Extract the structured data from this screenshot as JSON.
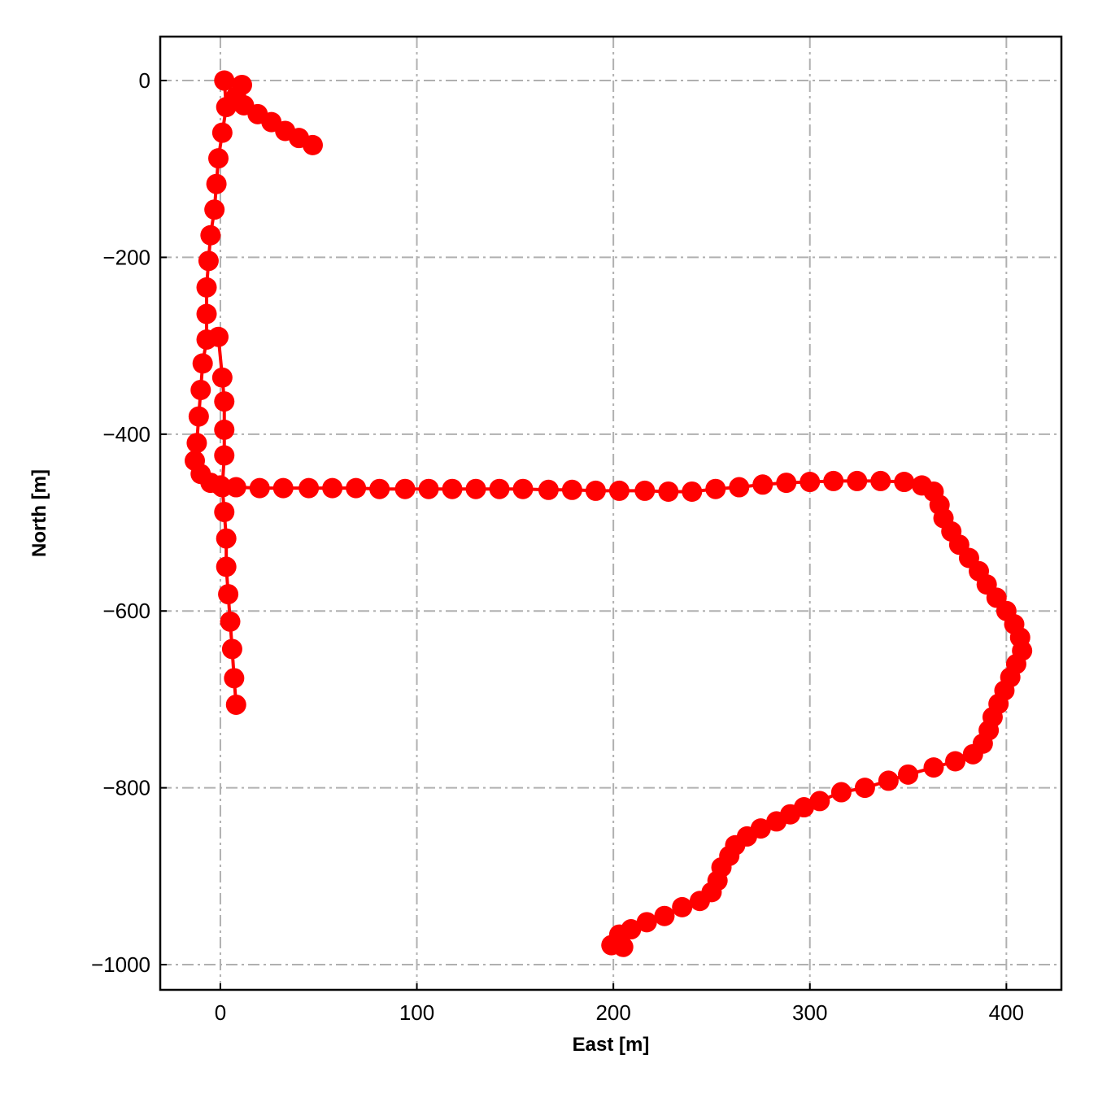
{
  "chart_data": {
    "type": "line",
    "xlabel": "East [m]",
    "ylabel": "North [m]",
    "x": [
      47,
      40,
      33,
      26,
      19,
      12,
      8,
      11,
      2,
      3,
      1,
      -1,
      -2,
      -3,
      -5,
      -6,
      -7,
      -7,
      -7,
      -9,
      -10,
      -11,
      -12,
      -13,
      -10,
      -5,
      0,
      8,
      20,
      32,
      45,
      57,
      69,
      81,
      94,
      106,
      118,
      130,
      142,
      154,
      167,
      179,
      191,
      203,
      216,
      228,
      240,
      252,
      264,
      276,
      288,
      300,
      312,
      324,
      336,
      348,
      357,
      363,
      366,
      368,
      372,
      376,
      381,
      386,
      390,
      395,
      400,
      404,
      407,
      408,
      405,
      402,
      399,
      396,
      393,
      391,
      388,
      383,
      374,
      363,
      350,
      340,
      328,
      316,
      305,
      297,
      290,
      283,
      275,
      268,
      262,
      259,
      255,
      253,
      250,
      244,
      235,
      226,
      217,
      209,
      203,
      199,
      205,
      null,
      8,
      7,
      6,
      5,
      4,
      3,
      3,
      2,
      1,
      2,
      2,
      2,
      1,
      -1
    ],
    "values": [
      -73,
      -65,
      -57,
      -47,
      -38,
      -28,
      -18,
      -5,
      0,
      -30,
      -59,
      -88,
      -117,
      -146,
      -175,
      -204,
      -234,
      -264,
      -293,
      -320,
      -350,
      -380,
      -410,
      -430,
      -445,
      -455,
      -458,
      -460,
      -461,
      -461,
      -461,
      -461,
      -461,
      -462,
      -462,
      -462,
      -462,
      -462,
      -462,
      -462,
      -463,
      -463,
      -464,
      -464,
      -464,
      -465,
      -465,
      -462,
      -460,
      -457,
      -455,
      -454,
      -453,
      -453,
      -453,
      -454,
      -458,
      -465,
      -480,
      -495,
      -510,
      -525,
      -540,
      -555,
      -570,
      -585,
      -600,
      -615,
      -630,
      -645,
      -660,
      -675,
      -690,
      -705,
      -720,
      -735,
      -750,
      -762,
      -770,
      -777,
      -785,
      -792,
      -800,
      -805,
      -815,
      -822,
      -830,
      -838,
      -846,
      -855,
      -865,
      -877,
      -890,
      -905,
      -918,
      -928,
      -935,
      -945,
      -952,
      -960,
      -966,
      -978,
      -980,
      null,
      -706,
      -676,
      -643,
      -612,
      -581,
      -550,
      -518,
      -488,
      -460,
      -424,
      -395,
      -363,
      -336,
      -290
    ],
    "color": "#ff0000",
    "xlim": [
      -30.6,
      428
    ],
    "ylim": [
      -1028.5,
      49.7
    ],
    "xticks": [
      0,
      100,
      200,
      300,
      400
    ],
    "yticks": [
      0,
      {
        "value": -200,
        "label": "−200"
      },
      {
        "value": -400,
        "label": "−400"
      },
      {
        "value": -600,
        "label": "−600"
      },
      {
        "value": -800,
        "label": "−800"
      },
      {
        "value": -1000,
        "label": "−1000"
      }
    ],
    "grid": true
  }
}
